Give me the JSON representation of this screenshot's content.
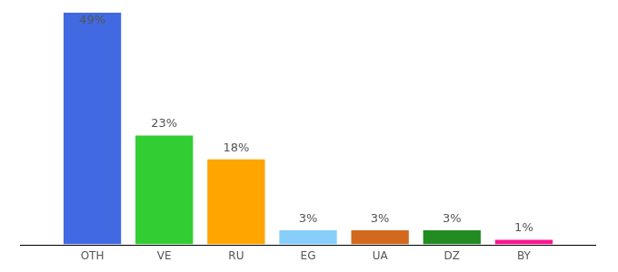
{
  "chart_data": {
    "type": "bar",
    "categories": [
      "OTH",
      "VE",
      "RU",
      "EG",
      "UA",
      "DZ",
      "BY"
    ],
    "values": [
      49,
      23,
      18,
      3,
      3,
      3,
      1
    ],
    "value_labels": [
      "49%",
      "23%",
      "18%",
      "3%",
      "3%",
      "3%",
      "1%"
    ],
    "colors": [
      "#4169e1",
      "#32cd32",
      "#ffa500",
      "#87cefa",
      "#d2691e",
      "#228b22",
      "#ff1493"
    ],
    "ylim": [
      0,
      49
    ],
    "data_labels": true,
    "tick_labels": "x",
    "grid": false
  }
}
